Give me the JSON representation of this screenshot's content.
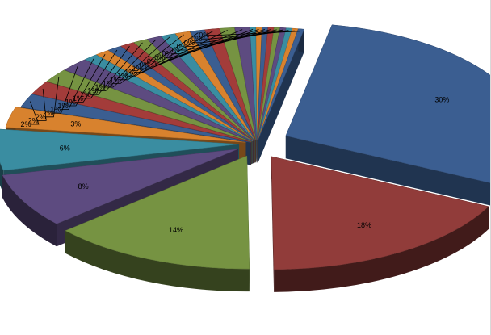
{
  "chart_data": {
    "type": "pie",
    "exploded": true,
    "three_d": true,
    "title": "",
    "legend": "none",
    "slices": [
      {
        "label": "30%",
        "value": 30,
        "color": "#3b5e91"
      },
      {
        "label": "18%",
        "value": 18,
        "color": "#913c3a"
      },
      {
        "label": "14%",
        "value": 14,
        "color": "#769342"
      },
      {
        "label": "8%",
        "value": 8,
        "color": "#5d4b80"
      },
      {
        "label": "6%",
        "value": 6,
        "color": "#3a8da1"
      },
      {
        "label": "3%",
        "value": 3,
        "color": "#d8822e"
      },
      {
        "label": "2%",
        "value": 2,
        "color": "#3b5e91"
      },
      {
        "label": "2%",
        "value": 2,
        "color": "#a33c3a"
      },
      {
        "label": "2%",
        "value": 2,
        "color": "#769342"
      },
      {
        "label": "2%",
        "value": 2,
        "color": "#5d4b80"
      },
      {
        "label": "1%",
        "value": 1,
        "color": "#3a8da1"
      },
      {
        "label": "1%",
        "value": 1,
        "color": "#d8822e"
      },
      {
        "label": "1%",
        "value": 1,
        "color": "#3b5e91"
      },
      {
        "label": "1%",
        "value": 1,
        "color": "#a33c3a"
      },
      {
        "label": "1%",
        "value": 1,
        "color": "#769342"
      },
      {
        "label": "1%",
        "value": 1,
        "color": "#5d4b80"
      },
      {
        "label": "1%",
        "value": 1,
        "color": "#3a8da1"
      },
      {
        "label": "1%",
        "value": 1,
        "color": "#d8822e"
      },
      {
        "label": "1%",
        "value": 1,
        "color": "#3b5e91"
      },
      {
        "label": "1%",
        "value": 1,
        "color": "#a33c3a"
      },
      {
        "label": "1%",
        "value": 1,
        "color": "#769342"
      },
      {
        "label": "1%",
        "value": 1,
        "color": "#5d4b80"
      },
      {
        "label": "0%",
        "value": 0.4,
        "color": "#3a8da1"
      },
      {
        "label": "0%",
        "value": 0.4,
        "color": "#d8822e"
      },
      {
        "label": "0%",
        "value": 0.4,
        "color": "#3b5e91"
      },
      {
        "label": "0%",
        "value": 0.4,
        "color": "#a33c3a"
      },
      {
        "label": "0%",
        "value": 0.4,
        "color": "#769342"
      },
      {
        "label": "0%",
        "value": 0.4,
        "color": "#5d4b80"
      },
      {
        "label": "0%",
        "value": 0.4,
        "color": "#3a8da1"
      },
      {
        "label": "0%",
        "value": 0.4,
        "color": "#d8822e"
      },
      {
        "label": "0%",
        "value": 0.4,
        "color": "#3b5e91"
      }
    ]
  }
}
